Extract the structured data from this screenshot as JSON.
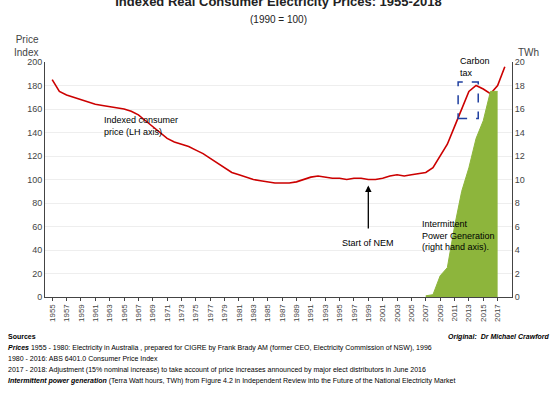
{
  "chart_data": {
    "type": "line",
    "title": "Indexed Real Consumer Electricity Prices: 1955-2018",
    "subtitle": "(1990 = 100)",
    "ylabel": "Price\nIndex",
    "y2label": "TWh",
    "xlim": [
      1954,
      2019
    ],
    "xticks": [
      1955,
      1957,
      1959,
      1961,
      1963,
      1965,
      1967,
      1969,
      1971,
      1973,
      1975,
      1977,
      1979,
      1981,
      1983,
      1985,
      1987,
      1989,
      1991,
      1993,
      1995,
      1997,
      1999,
      2001,
      2003,
      2005,
      2007,
      2009,
      2011,
      2013,
      2015,
      2017
    ],
    "ylim": [
      0,
      200
    ],
    "yticks": [
      0,
      20,
      40,
      60,
      80,
      100,
      120,
      140,
      160,
      180,
      200
    ],
    "y2lim": [
      0,
      20
    ],
    "y2ticks": [
      0,
      2,
      4,
      6,
      8,
      10,
      12,
      14,
      16,
      18,
      20
    ],
    "grid": true,
    "series": [
      {
        "type": "area",
        "axis": "y2",
        "color": "#8db53c",
        "x": [
          2007,
          2008,
          2009,
          2010,
          2011,
          2012,
          2013,
          2014,
          2015,
          2016,
          2017
        ],
        "values": [
          0.1,
          0.2,
          1.8,
          2.5,
          6.0,
          9.0,
          11.0,
          13.5,
          15.0,
          17.5,
          17.5
        ]
      },
      {
        "type": "line",
        "color": "#cc0000",
        "x": [
          1955,
          1956,
          1957,
          1958,
          1959,
          1960,
          1961,
          1962,
          1963,
          1964,
          1965,
          1966,
          1967,
          1968,
          1969,
          1970,
          1971,
          1972,
          1973,
          1974,
          1975,
          1976,
          1977,
          1978,
          1979,
          1980,
          1981,
          1982,
          1983,
          1984,
          1985,
          1986,
          1987,
          1988,
          1989,
          1990,
          1991,
          1992,
          1993,
          1994,
          1995,
          1996,
          1997,
          1998,
          1999,
          2000,
          2001,
          2002,
          2003,
          2004,
          2005,
          2006,
          2007,
          2008,
          2009,
          2010,
          2011,
          2012,
          2013,
          2014,
          2015,
          2016,
          2017,
          2018
        ],
        "values": [
          185,
          175,
          172,
          170,
          168,
          166,
          164,
          163,
          162,
          161,
          160,
          158,
          155,
          150,
          145,
          140,
          135,
          132,
          130,
          128,
          125,
          122,
          118,
          114,
          110,
          106,
          104,
          102,
          100,
          99,
          98,
          97,
          97,
          97,
          98,
          100,
          102,
          103,
          102,
          101,
          101,
          100,
          101,
          101,
          100,
          100,
          101,
          103,
          104,
          103,
          104,
          105,
          106,
          110,
          120,
          130,
          145,
          160,
          175,
          180,
          177,
          173,
          180,
          196
        ]
      }
    ],
    "annotations": [
      {
        "text": "Indexed consumer\nprice (LH axis)",
        "x": 1962,
        "y": 157
      },
      {
        "text": "Start of NEM",
        "x": 1999,
        "y": 52,
        "arrow": {
          "x": 1999,
          "from": 57,
          "to": 95
        }
      },
      {
        "text": "Intermittent\nPower Generation\n(right hand axis).",
        "x": 2006.2,
        "y": 68
      },
      {
        "text": "Carbon\ntax",
        "box": {
          "x": 2011.5,
          "y": 152,
          "width": 2.8,
          "height": 31,
          "color": "#1f3fa0"
        }
      }
    ],
    "notes": [
      [
        "Sources"
      ],
      [
        "Prices",
        " 1955 - 1980: Electricity in Australia , prepared for CIGRE by Frank Brady AM (former CEO, Electricity Commission of NSW), 1996"
      ],
      [
        "1980 - 2016: ABS 6401.0 Consumer Price Index"
      ],
      [
        "2017 - 2018: Adjustment (15% nominal increase) to take account of price increases announced by major elect distributors in June 2016"
      ],
      [
        "Intermittent power generation",
        " (Terra Watt hours, TWh) from Figure 4.2 in Independent Review into the Future of the National Electricity Market"
      ]
    ],
    "credit": "Original:  Dr Michael Crawford"
  }
}
